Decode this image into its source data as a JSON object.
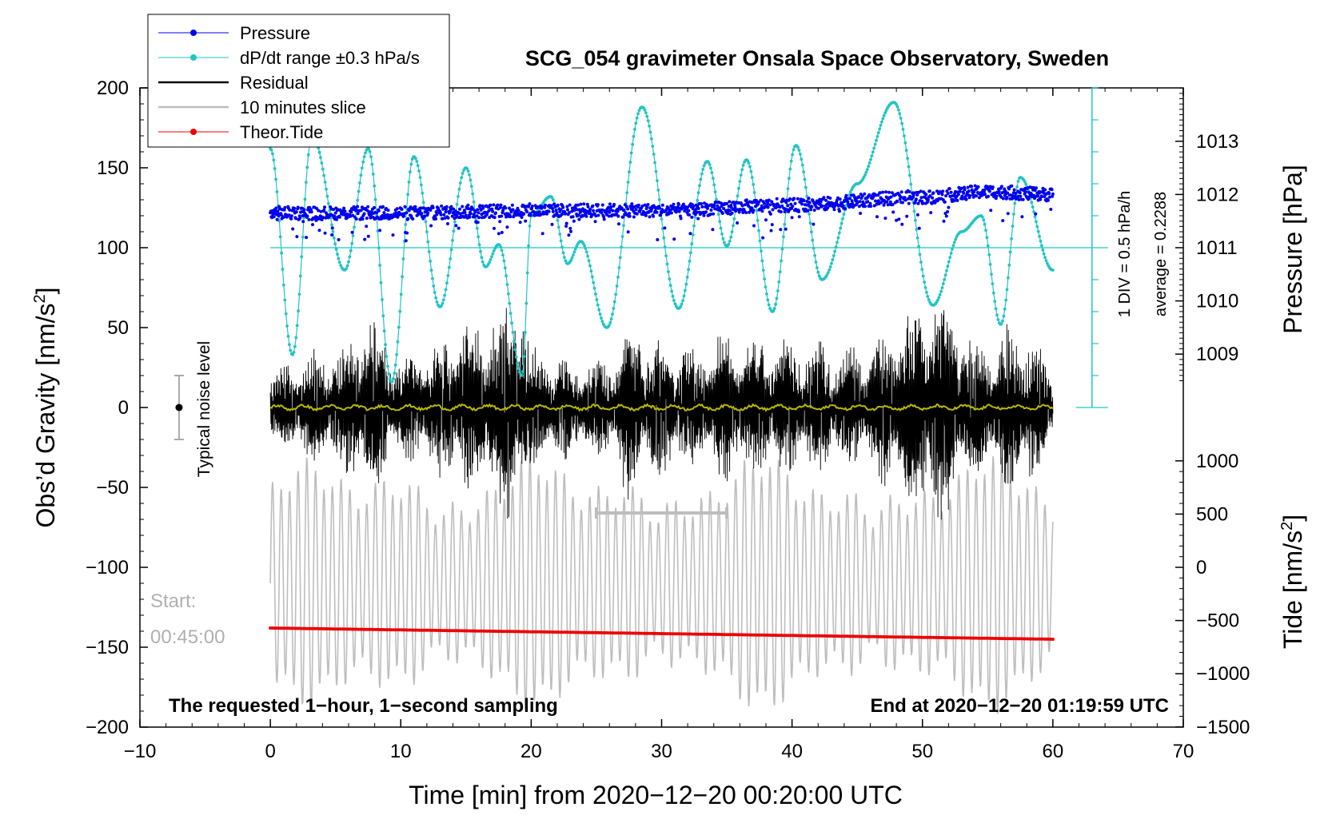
{
  "chart_data": {
    "type": "line",
    "title": "SCG_054 gravimeter Onsala Space Observatory, Sweden",
    "xlabel": "Time [min] from 2020−12−20 00:20:00 UTC",
    "xlim": [
      -10,
      70
    ],
    "x_ticks": [
      -10,
      0,
      10,
      20,
      30,
      40,
      50,
      60,
      70
    ],
    "x_tick_labels": [
      "−10",
      "0",
      "10",
      "20",
      "30",
      "40",
      "50",
      "60",
      "70"
    ],
    "left_axis": {
      "label_main": "Obs’d Gravity [nm/s",
      "label_sup": "2",
      "label_end": "]",
      "ylim": [
        -200,
        200
      ],
      "ticks": [
        200,
        150,
        100,
        50,
        0,
        -50,
        -100,
        -150,
        -200
      ],
      "tick_labels": [
        "200",
        "150",
        "100",
        "50",
        "0",
        "−50",
        "−100",
        "−150",
        "−200"
      ]
    },
    "pressure_axis": {
      "label": "Pressure [hPa]",
      "ticks": [
        1013,
        1012,
        1011,
        1010,
        1009
      ],
      "tick_labels": [
        "1013",
        "1012",
        "1011",
        "1010",
        "1009"
      ],
      "gravity_at_1011": 100,
      "gravity_per_hpa": 33.3
    },
    "tide_axis": {
      "label_main": "Tide [nm/s",
      "label_sup": "2",
      "label_end": "]",
      "ticks": [
        1000,
        500,
        0,
        -500,
        -1000,
        -1500
      ],
      "tick_labels": [
        "1000",
        "500",
        "0",
        "−500",
        "−1000",
        "−1500"
      ],
      "gravity_at_0": -100,
      "gravity_per_500": 33.3
    },
    "dpdt_scale": {
      "label_div": "1 DIV = 0.5 hPa/h",
      "label_avg": "average = 0.2288",
      "center_value": 100,
      "range_top": 200,
      "range_bottom": 0
    },
    "legend": [
      {
        "name": "Pressure",
        "color": "#0000ee",
        "style": "line-dot"
      },
      {
        "name": "dP/dt range ±0.3 hPa/s",
        "color": "#22c4c4",
        "style": "line-dot"
      },
      {
        "name": "Residual",
        "color": "#000000",
        "style": "line"
      },
      {
        "name": "10 minutes slice",
        "color": "#bdbdbd",
        "style": "line"
      },
      {
        "name": "Theor.Tide",
        "color": "#ee0000",
        "style": "line-dot"
      }
    ],
    "legend_position": "top-left outside",
    "annotations": {
      "noise_label": "Typical noise level",
      "noise_level": {
        "x": -7,
        "center": 0,
        "half_range": 20
      },
      "start_label": "Start:",
      "start_time": "00:45:00",
      "footer_left": "The requested 1−hour, 1−second sampling",
      "footer_right": "End at 2020−12−20 01:19:59 UTC",
      "slice_bracket": {
        "x_start": 25,
        "x_end": 35,
        "y": -66
      }
    },
    "series": [
      {
        "name": "Pressure",
        "color": "#0000ee",
        "y_unit": "hPa",
        "x": [
          0,
          10,
          20,
          30,
          40,
          50,
          55,
          60
        ],
        "y": [
          1011.65,
          1011.65,
          1011.7,
          1011.7,
          1011.8,
          1011.95,
          1012.05,
          1012.0
        ],
        "scatter_spread_hpa": 0.25
      },
      {
        "name": "dP/dt range ±0.3 hPa/s",
        "color": "#22c4c4",
        "y_unit": "nm/s2 scale",
        "x": [
          0,
          1.7,
          3.2,
          5.7,
          7.5,
          9.3,
          11.0,
          13.0,
          15.0,
          16.5,
          17.5,
          19.3,
          20.0,
          21.5,
          22.8,
          23.8,
          25.8,
          28.5,
          31.3,
          33.5,
          35.0,
          36.5,
          38.5,
          40.3,
          42.3,
          45.0,
          47.8,
          50.8,
          53.0,
          54.5,
          56.0,
          57.5,
          60.0
        ],
        "y": [
          162,
          33,
          170,
          86,
          162,
          16,
          157,
          63,
          150,
          88,
          102,
          20,
          120,
          132,
          90,
          104,
          50,
          188,
          62,
          154,
          101,
          155,
          60,
          164,
          80,
          140,
          191,
          64,
          110,
          120,
          52,
          144,
          86
        ]
      },
      {
        "name": "Residual",
        "color": "#000000",
        "y_unit": "nm/s2",
        "x": [
          0,
          5,
          7.7,
          10,
          15,
          19.2,
          20,
          25,
          26,
          27.5,
          30,
          33,
          34.5,
          40,
          45,
          50.5,
          55,
          57.8,
          60
        ],
        "envelope": [
          27,
          40,
          60,
          35,
          55,
          80,
          40,
          30,
          35,
          60,
          45,
          40,
          50,
          45,
          40,
          80,
          45,
          60,
          25
        ]
      },
      {
        "name": "Residual (smoothed)",
        "color": "#b8b800",
        "y_unit": "nm/s2",
        "x": [
          0,
          60
        ],
        "y": [
          0,
          0
        ]
      },
      {
        "name": "10 minutes slice",
        "color": "#bdbdbd",
        "y_unit": "nm/s2 scale",
        "x_start": 0,
        "x_end": 60,
        "center": -110,
        "amplitude_max": 75
      },
      {
        "name": "Theor.Tide",
        "color": "#ee0000",
        "y_unit": "nm/s2",
        "x": [
          0,
          60
        ],
        "y": [
          -138,
          -145
        ]
      }
    ]
  }
}
